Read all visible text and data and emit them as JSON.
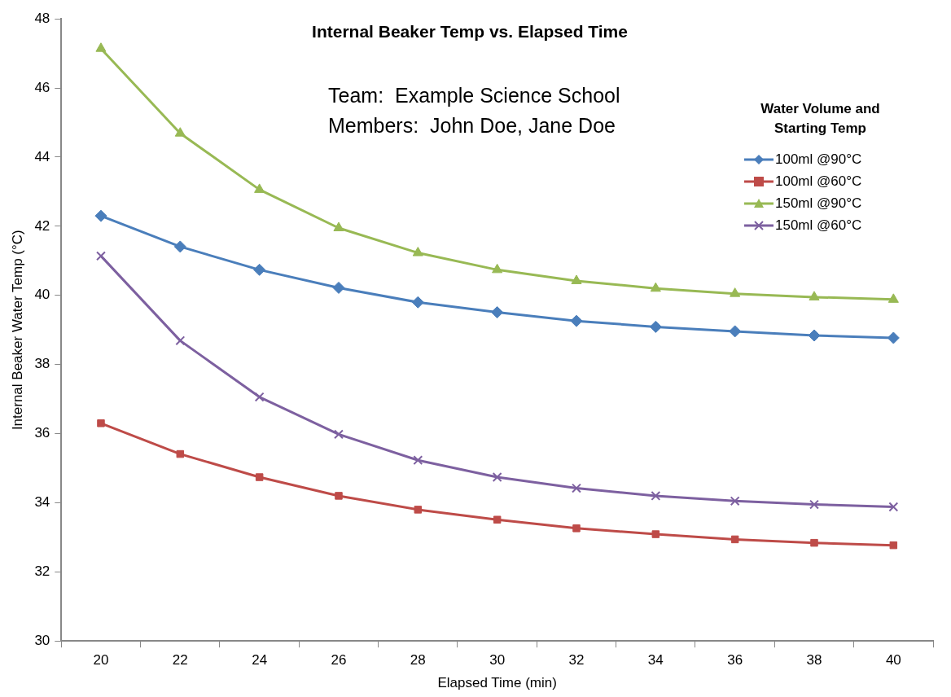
{
  "chart_data": {
    "type": "line",
    "title": "Internal Beaker Temp vs. Elapsed Time",
    "xlabel": "Elapsed Time (min)",
    "ylabel": "Internal Beaker Water Temp (°C)",
    "legend_title": "Water Volume and Starting Temp",
    "legend": "top right",
    "annotations": [
      "Team:  Example Science School",
      "Members:  John Doe, Jane Doe"
    ],
    "categories": [
      "20",
      "22",
      "24",
      "26",
      "28",
      "30",
      "32",
      "34",
      "36",
      "38",
      "40"
    ],
    "ylim": [
      30,
      48
    ],
    "yticks": [
      30,
      32,
      34,
      36,
      38,
      40,
      42,
      44,
      46,
      48
    ],
    "grid": false,
    "line_style": "solid",
    "series": [
      {
        "name": "100ml @90°C",
        "color": "#4a7ebb",
        "marker": "diamond",
        "values": [
          42.3,
          41.41,
          40.74,
          40.22,
          39.8,
          39.51,
          39.26,
          39.09,
          38.96,
          38.84,
          38.77
        ]
      },
      {
        "name": "100ml @60°C",
        "color": "#be4b48",
        "marker": "square",
        "values": [
          36.3,
          35.41,
          34.74,
          34.2,
          33.8,
          33.51,
          33.26,
          33.09,
          32.94,
          32.84,
          32.77
        ]
      },
      {
        "name": "150ml @90°C",
        "color": "#98b954",
        "marker": "triangle",
        "values": [
          47.14,
          44.69,
          43.06,
          41.95,
          41.23,
          40.74,
          40.42,
          40.2,
          40.05,
          39.95,
          39.88
        ]
      },
      {
        "name": "150ml @60°C",
        "color": "#7d60a0",
        "marker": "cross",
        "values": [
          41.14,
          38.69,
          37.06,
          35.98,
          35.23,
          34.74,
          34.42,
          34.2,
          34.05,
          33.95,
          33.88
        ]
      }
    ]
  }
}
